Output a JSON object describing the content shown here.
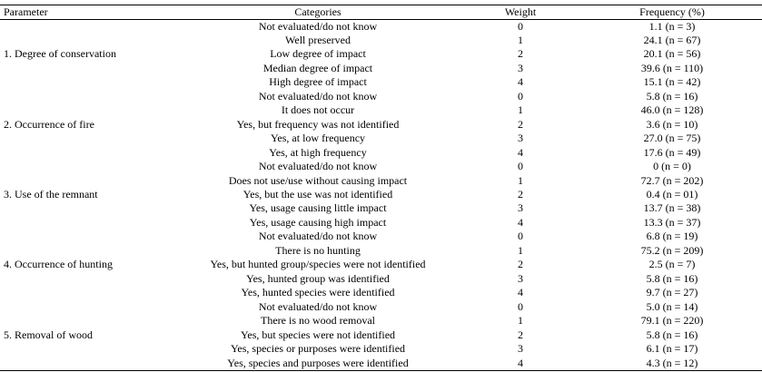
{
  "table": {
    "header": [
      "Parameter",
      "Categories",
      "Weight",
      "Frequency (%)"
    ],
    "groups": [
      {
        "parameter": "1. Degree of conservation",
        "rows": [
          [
            "Not evaluated/do not know",
            0,
            "1.1 (n = 3)"
          ],
          [
            "Well preserved",
            1,
            "24.1 (n = 67)"
          ],
          [
            "Low degree of impact",
            2,
            "20.1 (n = 56)"
          ],
          [
            "Median degree of impact",
            3,
            "39.6 (n = 110)"
          ],
          [
            "High degree of impact",
            4,
            "15.1 (n = 42)"
          ]
        ]
      },
      {
        "parameter": "2. Occurrence of fire",
        "rows": [
          [
            "Not evaluated/do not know",
            0,
            "5.8 (n = 16)"
          ],
          [
            "It does not occur",
            1,
            "46.0 (n = 128)"
          ],
          [
            "Yes, but frequency was not identified",
            2,
            "3.6 (n = 10)"
          ],
          [
            "Yes, at low frequency",
            3,
            "27.0 (n = 75)"
          ],
          [
            "Yes, at high frequency",
            4,
            "17.6 (n = 49)"
          ]
        ]
      },
      {
        "parameter": "3. Use of the remnant",
        "rows": [
          [
            "Not evaluated/do not know",
            0,
            "0 (n = 0)"
          ],
          [
            "Does not use/use without causing impact",
            1,
            "72.7 (n = 202)"
          ],
          [
            "Yes, but the use was not identified",
            2,
            "0.4 (n = 01)"
          ],
          [
            "Yes, usage causing little impact",
            3,
            "13.7 (n = 38)"
          ],
          [
            "Yes, usage causing high impact",
            4,
            "13.3 (n = 37)"
          ]
        ]
      },
      {
        "parameter": "4. Occurrence of hunting",
        "rows": [
          [
            "Not evaluated/do not know",
            0,
            "6.8 (n = 19)"
          ],
          [
            "There is no hunting",
            1,
            "75.2 (n = 209)"
          ],
          [
            "Yes, but hunted group/species were not identified",
            2,
            "2.5 (n = 7)"
          ],
          [
            "Yes, hunted group was identified",
            3,
            "5.8 (n = 16)"
          ],
          [
            "Yes, hunted species were identified",
            4,
            "9.7 (n = 27)"
          ]
        ]
      },
      {
        "parameter": "5. Removal of wood",
        "rows": [
          [
            "Not evaluated/do not know",
            0,
            "5.0 (n = 14)"
          ],
          [
            "There is no wood removal",
            1,
            "79.1 (n = 220)"
          ],
          [
            "Yes, but species were not identified",
            2,
            "5.8 (n = 16)"
          ],
          [
            "Yes, species or purposes were identified",
            3,
            "6.1 (n = 17)"
          ],
          [
            "Yes, species and purposes were identified",
            4,
            "4.3 (n = 12)"
          ]
        ]
      }
    ]
  }
}
